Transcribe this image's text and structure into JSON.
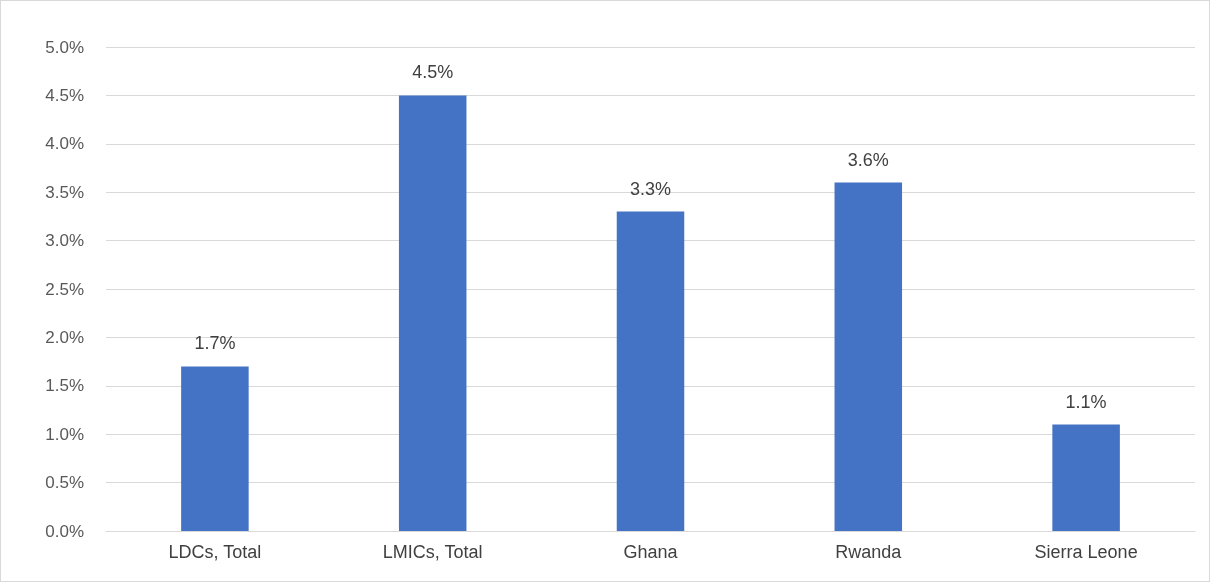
{
  "chart_data": {
    "type": "bar",
    "categories": [
      "LDCs, Total",
      "LMICs, Total",
      "Ghana",
      "Rwanda",
      "Sierra Leone"
    ],
    "values": [
      1.7,
      4.5,
      3.3,
      3.6,
      1.1
    ],
    "value_labels": [
      "1.7%",
      "4.5%",
      "3.3%",
      "3.6%",
      "1.1%"
    ],
    "color": "#4472c4",
    "ylim": [
      0,
      5
    ],
    "yticks": [
      {
        "value": 0,
        "label": "0.0%"
      },
      {
        "value": 0.5,
        "label": "0.5%"
      },
      {
        "value": 1,
        "label": "1.0%"
      },
      {
        "value": 1.5,
        "label": "1.5%"
      },
      {
        "value": 2,
        "label": "2.0%"
      },
      {
        "value": 2.5,
        "label": "2.5%"
      },
      {
        "value": 3,
        "label": "3.0%"
      },
      {
        "value": 3.5,
        "label": "3.5%"
      },
      {
        "value": 4,
        "label": "4.0%"
      },
      {
        "value": 4.5,
        "label": "4.5%"
      },
      {
        "value": 5,
        "label": "5.0%"
      }
    ],
    "grid": "y"
  }
}
